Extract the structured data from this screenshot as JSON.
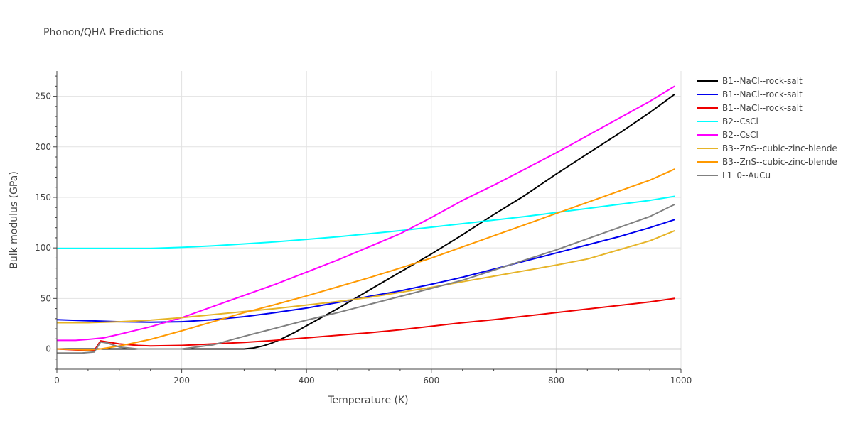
{
  "chart_data": {
    "type": "line",
    "title": "Phonon/QHA Predictions",
    "xlabel": "Temperature (K)",
    "ylabel": "Bulk modulus (GPa)",
    "xlim": [
      0,
      1000
    ],
    "ylim": [
      -20,
      275
    ],
    "x_ticks": [
      0,
      200,
      400,
      600,
      800,
      1000
    ],
    "y_ticks": [
      0,
      50,
      100,
      150,
      200,
      250
    ],
    "grid": true,
    "legend_position": "right",
    "series": [
      {
        "name": "B1--NaCl--rock-salt",
        "color": "#000000",
        "points": [
          [
            0,
            0
          ],
          [
            100,
            0
          ],
          [
            200,
            0
          ],
          [
            300,
            0
          ],
          [
            315,
            1
          ],
          [
            330,
            3
          ],
          [
            345,
            6
          ],
          [
            360,
            10
          ],
          [
            380,
            16
          ],
          [
            400,
            23
          ],
          [
            450,
            40
          ],
          [
            500,
            58
          ],
          [
            550,
            76
          ],
          [
            600,
            94
          ],
          [
            650,
            113
          ],
          [
            700,
            133
          ],
          [
            750,
            152
          ],
          [
            800,
            173
          ],
          [
            850,
            193
          ],
          [
            900,
            213
          ],
          [
            950,
            234
          ],
          [
            990,
            252
          ]
        ]
      },
      {
        "name": "B1--NaCl--rock-salt",
        "color": "#0000ee",
        "points": [
          [
            0,
            29
          ],
          [
            50,
            28
          ],
          [
            100,
            27
          ],
          [
            150,
            26.5
          ],
          [
            200,
            27
          ],
          [
            250,
            29
          ],
          [
            300,
            32
          ],
          [
            350,
            36
          ],
          [
            400,
            40.5
          ],
          [
            450,
            46
          ],
          [
            500,
            52
          ],
          [
            550,
            57.5
          ],
          [
            600,
            64
          ],
          [
            650,
            71
          ],
          [
            700,
            79
          ],
          [
            750,
            87
          ],
          [
            800,
            95
          ],
          [
            850,
            103
          ],
          [
            900,
            111
          ],
          [
            950,
            120
          ],
          [
            990,
            128
          ]
        ]
      },
      {
        "name": "B1--NaCl--rock-salt",
        "color": "#ee0000",
        "points": [
          [
            0,
            0
          ],
          [
            30,
            -1
          ],
          [
            60,
            -1.5
          ],
          [
            70,
            8
          ],
          [
            100,
            5
          ],
          [
            130,
            3.5
          ],
          [
            150,
            3
          ],
          [
            200,
            3.5
          ],
          [
            250,
            5
          ],
          [
            300,
            6.5
          ],
          [
            350,
            8.5
          ],
          [
            400,
            11
          ],
          [
            450,
            13.5
          ],
          [
            500,
            16
          ],
          [
            550,
            19
          ],
          [
            600,
            22.5
          ],
          [
            650,
            26
          ],
          [
            700,
            29
          ],
          [
            750,
            32.5
          ],
          [
            800,
            36
          ],
          [
            850,
            39.5
          ],
          [
            900,
            43
          ],
          [
            950,
            46.5
          ],
          [
            990,
            50
          ]
        ]
      },
      {
        "name": "B2--CsCl",
        "color": "#00ffff",
        "points": [
          [
            0,
            99.5
          ],
          [
            50,
            99.5
          ],
          [
            100,
            99.5
          ],
          [
            150,
            99.5
          ],
          [
            200,
            100.5
          ],
          [
            250,
            102
          ],
          [
            300,
            104
          ],
          [
            350,
            106
          ],
          [
            400,
            108.5
          ],
          [
            450,
            111
          ],
          [
            500,
            114
          ],
          [
            550,
            117
          ],
          [
            600,
            120.5
          ],
          [
            650,
            124
          ],
          [
            700,
            127.5
          ],
          [
            750,
            131
          ],
          [
            800,
            135
          ],
          [
            850,
            139
          ],
          [
            900,
            143
          ],
          [
            950,
            147
          ],
          [
            990,
            151
          ]
        ]
      },
      {
        "name": "B2--CsCl",
        "color": "#ff00ff",
        "points": [
          [
            0,
            8.5
          ],
          [
            30,
            8.5
          ],
          [
            50,
            9.5
          ],
          [
            75,
            11
          ],
          [
            100,
            14.5
          ],
          [
            150,
            22
          ],
          [
            200,
            31
          ],
          [
            250,
            42
          ],
          [
            300,
            53
          ],
          [
            350,
            64
          ],
          [
            400,
            76
          ],
          [
            450,
            88
          ],
          [
            500,
            101
          ],
          [
            550,
            114
          ],
          [
            600,
            130
          ],
          [
            650,
            147
          ],
          [
            700,
            162
          ],
          [
            750,
            178
          ],
          [
            800,
            194
          ],
          [
            850,
            211
          ],
          [
            900,
            228
          ],
          [
            950,
            245
          ],
          [
            990,
            260
          ]
        ]
      },
      {
        "name": "B3--ZnS--cubic-zinc-blende",
        "color": "#e6b428",
        "points": [
          [
            0,
            26
          ],
          [
            50,
            26
          ],
          [
            100,
            27
          ],
          [
            150,
            28.5
          ],
          [
            200,
            31
          ],
          [
            250,
            34
          ],
          [
            300,
            37
          ],
          [
            350,
            40
          ],
          [
            400,
            43.5
          ],
          [
            450,
            47
          ],
          [
            500,
            51
          ],
          [
            550,
            56
          ],
          [
            600,
            61
          ],
          [
            650,
            66.5
          ],
          [
            700,
            72
          ],
          [
            750,
            77.5
          ],
          [
            800,
            83
          ],
          [
            850,
            89
          ],
          [
            900,
            98
          ],
          [
            950,
            107
          ],
          [
            990,
            117
          ]
        ]
      },
      {
        "name": "B3--ZnS--cubic-zinc-blende",
        "color": "#ff9900",
        "points": [
          [
            0,
            0
          ],
          [
            50,
            -1
          ],
          [
            70,
            0
          ],
          [
            100,
            3
          ],
          [
            150,
            9.5
          ],
          [
            200,
            18
          ],
          [
            250,
            27
          ],
          [
            300,
            36
          ],
          [
            350,
            44
          ],
          [
            400,
            52.5
          ],
          [
            450,
            61.5
          ],
          [
            500,
            70.5
          ],
          [
            550,
            80
          ],
          [
            600,
            90
          ],
          [
            650,
            101
          ],
          [
            700,
            112
          ],
          [
            750,
            123
          ],
          [
            800,
            134
          ],
          [
            850,
            145
          ],
          [
            900,
            156
          ],
          [
            950,
            167
          ],
          [
            990,
            178
          ]
        ]
      },
      {
        "name": "L1_0--AuCu",
        "color": "#808080",
        "points": [
          [
            0,
            -4
          ],
          [
            40,
            -4
          ],
          [
            60,
            -3
          ],
          [
            70,
            7
          ],
          [
            80,
            6
          ],
          [
            100,
            2
          ],
          [
            130,
            0
          ],
          [
            150,
            0
          ],
          [
            200,
            0
          ],
          [
            250,
            4
          ],
          [
            300,
            12.5
          ],
          [
            350,
            20.5
          ],
          [
            400,
            28.5
          ],
          [
            450,
            36
          ],
          [
            500,
            44
          ],
          [
            550,
            52
          ],
          [
            600,
            60
          ],
          [
            650,
            68
          ],
          [
            700,
            78
          ],
          [
            750,
            88
          ],
          [
            800,
            98
          ],
          [
            850,
            109
          ],
          [
            900,
            120
          ],
          [
            950,
            131
          ],
          [
            990,
            143
          ]
        ]
      }
    ]
  }
}
